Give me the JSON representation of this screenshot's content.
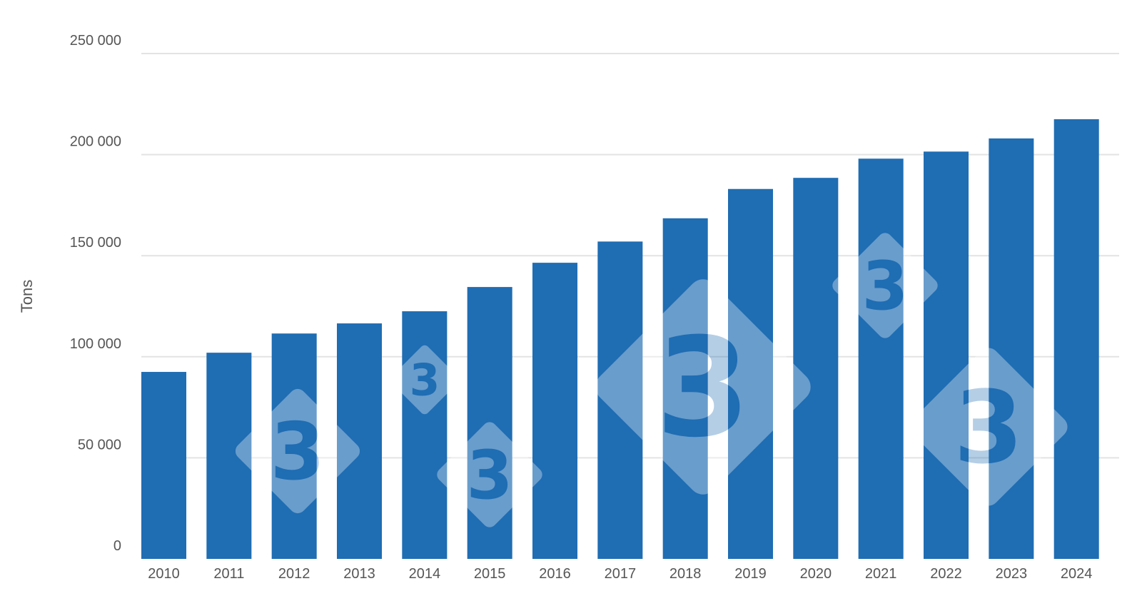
{
  "chart_data": {
    "type": "bar",
    "title": "",
    "xlabel": "",
    "ylabel": "Tons",
    "categories": [
      "2010",
      "2011",
      "2012",
      "2013",
      "2014",
      "2015",
      "2016",
      "2017",
      "2018",
      "2019",
      "2020",
      "2021",
      "2022",
      "2023",
      "2024"
    ],
    "values": [
      92500,
      102000,
      111500,
      116500,
      122500,
      134500,
      146500,
      157000,
      168500,
      183000,
      188500,
      198000,
      201500,
      208000,
      217500
    ],
    "ylim": [
      0,
      250000
    ],
    "yticks": [
      0,
      50000,
      100000,
      150000,
      200000,
      250000
    ],
    "ytick_labels": [
      "0",
      "50 000",
      "100 000",
      "150 000",
      "200 000",
      "250 000"
    ],
    "grid": true,
    "legend": "none",
    "bar_color": "#1f6db3",
    "grid_color": "#e3e3e3",
    "text_color": "#555555",
    "watermark_color": "#ffffff"
  },
  "watermark": {
    "glyph": "3"
  }
}
